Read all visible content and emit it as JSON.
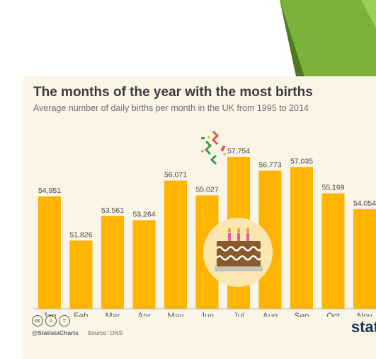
{
  "chart_data": {
    "type": "bar",
    "title": "The months of the year with the most births",
    "subtitle": "Average number of daily births per month in the UK from 1995 to 2014",
    "categories": [
      "Jan",
      "Feb",
      "Mar",
      "Apr",
      "May",
      "Jun",
      "Jul",
      "Aug",
      "Sep",
      "Oct",
      "Nov"
    ],
    "values": [
      54951,
      51826,
      53561,
      53264,
      56071,
      55027,
      57754,
      56773,
      57035,
      55169,
      54054
    ],
    "value_labels": [
      "54,951",
      "51,826",
      "53,561",
      "53,264",
      "56,071",
      "55,027",
      "57,754",
      "56,773",
      "57,035",
      "55,169",
      "54,054"
    ],
    "ylim": [
      47000,
      58700
    ],
    "grid": false,
    "legend": "none",
    "bar_color": "#ffb400",
    "highlight_category": "Jul"
  },
  "footer": {
    "handle": "@StatistaCharts",
    "source": "Source: ONS",
    "cc_icons": [
      "creative-commons-icon",
      "attribution-icon",
      "no-derivatives-icon"
    ],
    "cc_glyphs": [
      "cc",
      "i",
      "="
    ]
  },
  "brand": {
    "logo_text": "stat"
  },
  "decor": {
    "accent_green": "#7bb33a",
    "accent_green_dark": "#4d7a1c",
    "card_background": "#fbf5e7"
  }
}
